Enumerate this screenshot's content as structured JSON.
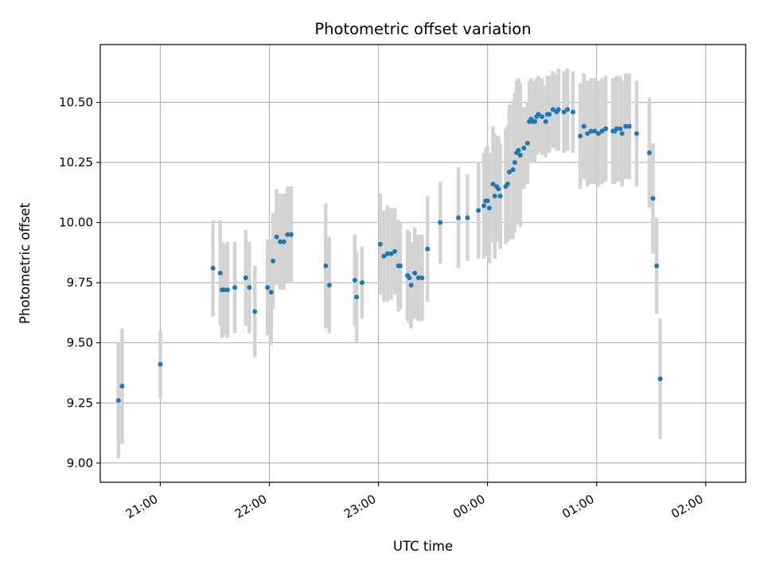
{
  "chart_data": {
    "type": "scatter",
    "title": "Photometric offset variation",
    "xlabel": "UTC time",
    "ylabel": "Photometric offset",
    "grid": true,
    "x_unit": "UTC time (HH:MM)",
    "xlim": [
      "20:27",
      "02:22"
    ],
    "ylim": [
      8.92,
      10.74
    ],
    "x_ticks": [
      "21:00",
      "22:00",
      "23:00",
      "00:00",
      "01:00",
      "02:00"
    ],
    "y_ticks": [
      "9.00",
      "9.25",
      "9.50",
      "9.75",
      "10.00",
      "10.25",
      "10.50"
    ],
    "colors": {
      "point": "#1f77b4",
      "error_bar": "#d3d3d3",
      "grid": "#b0b0b0"
    },
    "series": [
      {
        "x": [
          "20:37",
          "20:39",
          "21:00",
          "21:29",
          "21:33",
          "21:34",
          "21:35",
          "21:37",
          "21:41",
          "21:47",
          "21:49",
          "21:52",
          "21:59",
          "22:01",
          "22:02",
          "22:04",
          "22:06",
          "22:08",
          "22:10",
          "22:12",
          "22:31",
          "22:33",
          "22:47",
          "22:48",
          "22:51",
          "23:01",
          "23:03",
          "23:05",
          "23:07",
          "23:09",
          "23:11",
          "23:12",
          "23:16",
          "23:17",
          "23:18",
          "23:20",
          "23:22",
          "23:24",
          "23:27",
          "23:34",
          "23:44",
          "23:49",
          "23:55",
          "23:58",
          "23:59",
          "00:00",
          "00:01",
          "00:03",
          "00:04",
          "00:05",
          "00:06",
          "00:07",
          "00:10",
          "00:11",
          "00:12",
          "00:14",
          "00:15",
          "00:16",
          "00:17",
          "00:18",
          "00:20",
          "00:22",
          "00:23",
          "00:24",
          "00:25",
          "00:26",
          "00:27",
          "00:28",
          "00:30",
          "00:32",
          "00:33",
          "00:34",
          "00:36",
          "00:38",
          "00:39",
          "00:42",
          "00:44",
          "00:47",
          "00:51",
          "00:53",
          "00:55",
          "00:57",
          "00:59",
          "01:01",
          "01:03",
          "01:05",
          "01:09",
          "01:10",
          "01:11",
          "01:13",
          "01:14",
          "01:16",
          "01:18",
          "01:22",
          "01:29",
          "01:31",
          "01:33",
          "01:35"
        ],
        "y": [
          9.26,
          9.32,
          9.41,
          9.81,
          9.79,
          9.72,
          9.72,
          9.72,
          9.73,
          9.77,
          9.73,
          9.63,
          9.73,
          9.71,
          9.84,
          9.94,
          9.92,
          9.92,
          9.95,
          9.95,
          9.82,
          9.74,
          9.76,
          9.69,
          9.75,
          9.91,
          9.86,
          9.87,
          9.87,
          9.88,
          9.82,
          9.82,
          9.78,
          9.77,
          9.74,
          9.79,
          9.77,
          9.77,
          9.89,
          10.0,
          10.02,
          10.02,
          10.05,
          10.07,
          10.09,
          10.09,
          10.06,
          10.16,
          10.11,
          10.15,
          10.14,
          10.11,
          10.15,
          10.16,
          10.21,
          10.22,
          10.25,
          10.29,
          10.3,
          10.28,
          10.31,
          10.33,
          10.42,
          10.43,
          10.42,
          10.42,
          10.44,
          10.45,
          10.44,
          10.42,
          10.45,
          10.45,
          10.47,
          10.46,
          10.47,
          10.46,
          10.47,
          10.46,
          10.36,
          10.4,
          10.37,
          10.38,
          10.38,
          10.37,
          10.38,
          10.39,
          10.38,
          10.38,
          10.39,
          10.39,
          10.37,
          10.4,
          10.4,
          10.37,
          10.29,
          10.1,
          9.82,
          9.35
        ],
        "yerr": [
          0.24,
          0.24,
          0.14,
          0.2,
          0.22,
          0.2,
          0.19,
          0.2,
          0.19,
          0.2,
          0.19,
          0.19,
          0.2,
          0.22,
          0.2,
          0.2,
          0.2,
          0.2,
          0.2,
          0.2,
          0.26,
          0.2,
          0.19,
          0.19,
          0.15,
          0.21,
          0.19,
          0.2,
          0.19,
          0.18,
          0.19,
          0.18,
          0.19,
          0.19,
          0.18,
          0.19,
          0.18,
          0.18,
          0.22,
          0.17,
          0.21,
          0.18,
          0.2,
          0.22,
          0.22,
          0.23,
          0.23,
          0.24,
          0.26,
          0.2,
          0.22,
          0.22,
          0.24,
          0.24,
          0.28,
          0.29,
          0.29,
          0.3,
          0.3,
          0.3,
          0.17,
          0.17,
          0.17,
          0.17,
          0.17,
          0.17,
          0.16,
          0.16,
          0.16,
          0.15,
          0.16,
          0.16,
          0.16,
          0.16,
          0.17,
          0.17,
          0.17,
          0.17,
          0.22,
          0.22,
          0.22,
          0.22,
          0.22,
          0.22,
          0.22,
          0.22,
          0.22,
          0.22,
          0.22,
          0.22,
          0.22,
          0.22,
          0.22,
          0.22,
          0.23,
          0.23,
          0.2,
          0.25
        ]
      }
    ]
  }
}
